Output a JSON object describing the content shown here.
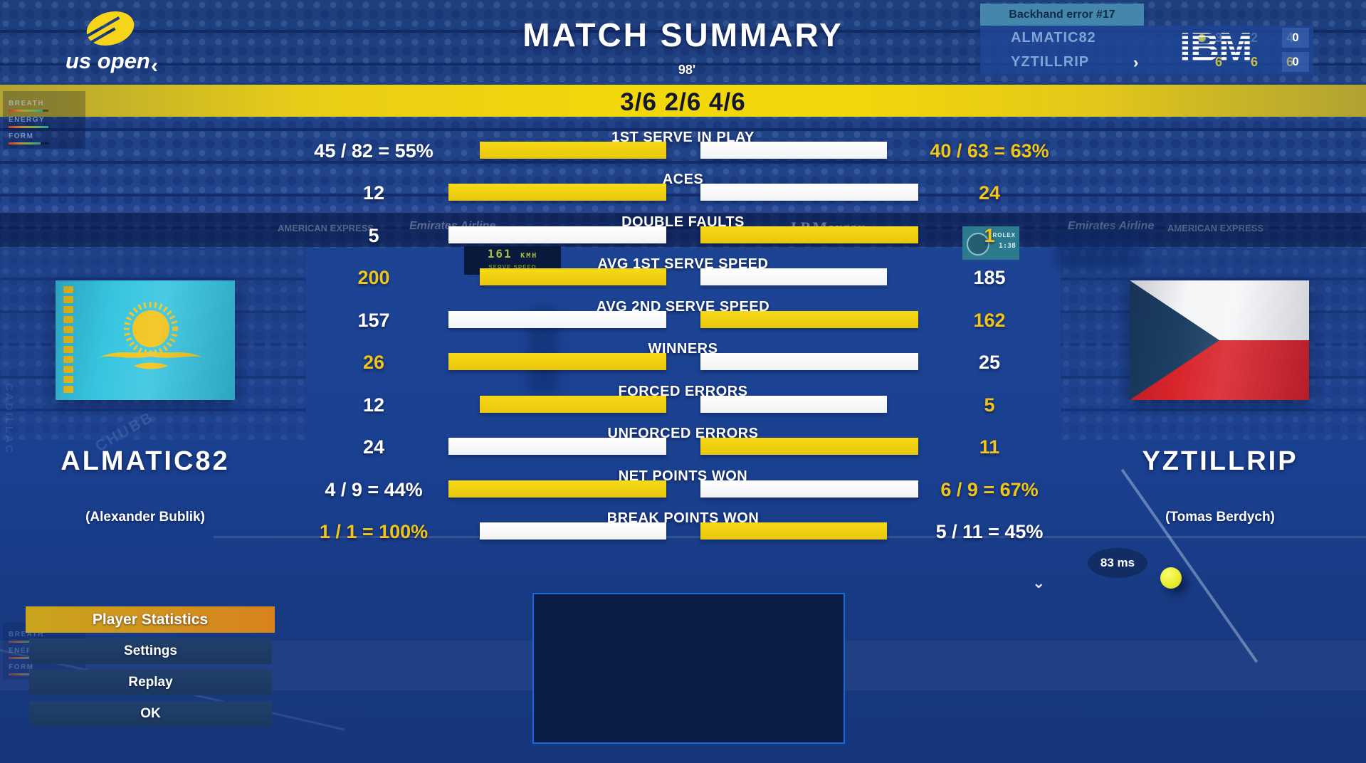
{
  "header": {
    "brand": "us open",
    "back_chevron": "‹",
    "title": "MATCH SUMMARY",
    "duration": "98'"
  },
  "score_band": {
    "score": "3/6 2/6 4/6"
  },
  "scoreboard": {
    "event": "Backhand error #17",
    "next_chevron": "›",
    "sponsor_logo": "IBM",
    "rows": [
      {
        "name": "ALMATIC82",
        "sets": [
          "3",
          "2",
          "4"
        ],
        "game": "0",
        "serving": true,
        "sets_style": "dim"
      },
      {
        "name": "YZTILLRIP",
        "sets": [
          "6",
          "6",
          "6"
        ],
        "game": "0",
        "serving": false,
        "sets_style": "win"
      }
    ]
  },
  "stats": {
    "rows": [
      {
        "label": "1ST SERVE IN PLAY",
        "left": "45 / 82 = 55%",
        "right": "40 / 63 = 63%",
        "left_color": "white",
        "right_color": "yellow",
        "bar": {
          "size": "short",
          "left": "yellow",
          "right": "white"
        }
      },
      {
        "label": "ACES",
        "left": "12",
        "right": "24",
        "left_color": "white",
        "right_color": "yellow",
        "bar": {
          "size": "long",
          "left": "yellow",
          "right": "white"
        }
      },
      {
        "label": "DOUBLE FAULTS",
        "left": "5",
        "right": "1",
        "left_color": "white",
        "right_color": "yellow",
        "bar": {
          "size": "long",
          "left": "white",
          "right": "yellow"
        }
      },
      {
        "label": "AVG 1ST SERVE SPEED",
        "left": "200",
        "right": "185",
        "left_color": "yellow",
        "right_color": "white",
        "bar": {
          "size": "short",
          "left": "yellow",
          "right": "white"
        }
      },
      {
        "label": "AVG 2ND SERVE SPEED",
        "left": "157",
        "right": "162",
        "left_color": "white",
        "right_color": "yellow",
        "bar": {
          "size": "long",
          "left": "white",
          "right": "yellow"
        }
      },
      {
        "label": "WINNERS",
        "left": "26",
        "right": "25",
        "left_color": "yellow",
        "right_color": "white",
        "bar": {
          "size": "long",
          "left": "yellow",
          "right": "white"
        }
      },
      {
        "label": "FORCED ERRORS",
        "left": "12",
        "right": "5",
        "left_color": "white",
        "right_color": "yellow",
        "bar": {
          "size": "short",
          "left": "yellow",
          "right": "white"
        }
      },
      {
        "label": "UNFORCED ERRORS",
        "left": "24",
        "right": "11",
        "left_color": "white",
        "right_color": "yellow",
        "bar": {
          "size": "long",
          "left": "white",
          "right": "yellow"
        }
      },
      {
        "label": "NET POINTS WON",
        "left": "4 / 9 = 44%",
        "right": "6 / 9 = 67%",
        "left_color": "white",
        "right_color": "yellow",
        "bar": {
          "size": "long",
          "left": "yellow",
          "right": "white"
        }
      },
      {
        "label": "BREAK POINTS WON",
        "left": "1 / 1 = 100%",
        "right": "5 / 11 = 45%",
        "left_color": "yellow",
        "right_color": "white",
        "bar": {
          "size": "short",
          "left": "white",
          "right": "yellow"
        }
      }
    ]
  },
  "players": {
    "left": {
      "nick": "ALMATIC82",
      "real_name": "(Alexander Bublik)",
      "flag": "kazakhstan-flag"
    },
    "right": {
      "nick": "YZTILLRIP",
      "real_name": "(Tomas Berdych)",
      "flag": "czech-republic-flag"
    }
  },
  "gauges": {
    "labels": [
      "BREATH",
      "ENERGY",
      "FORM"
    ],
    "top_fills": [
      85,
      100,
      80
    ],
    "bottom_fills": [
      90,
      95,
      85
    ]
  },
  "menu": {
    "items": [
      {
        "label": "Player Statistics",
        "active": true
      },
      {
        "label": "Settings",
        "active": false
      },
      {
        "label": "Replay",
        "active": false
      },
      {
        "label": "OK",
        "active": false
      }
    ]
  },
  "hud": {
    "ping": "83 ms",
    "collapse_chevron": "⌄"
  },
  "ambient": {
    "sponsors": [
      "Emirates Airline",
      "J.P.Morgan",
      "AMERICAN EXPRESS",
      "CHUBB",
      "CADILLAC"
    ],
    "led_speed": "161",
    "led_unit": "KMH",
    "led_label": "SERVE SPEED",
    "clock_brand": "ROLEX",
    "clock_time": "1:38"
  },
  "colors": {
    "accent_yellow": "#f0c419",
    "bar_yellow": "#f0ce10",
    "bar_white": "#ffffff",
    "band_yellow": "#f2d70a",
    "score_text": "#12172e",
    "menu_active_from": "#c9a51d",
    "menu_active_to": "#d8821e",
    "scoreboard_header": "#4587ac"
  }
}
